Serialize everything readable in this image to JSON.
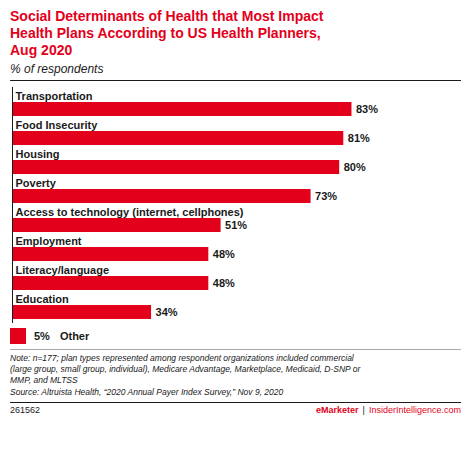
{
  "chart_data": {
    "type": "bar",
    "orientation": "horizontal",
    "title": "Social Determinants of Health that Most Impact\nHealth Plans According to US Health Planners,\nAug 2020",
    "subtitle": "% of respondents",
    "categories": [
      "Transportation",
      "Food Insecurity",
      "Housing",
      "Poverty",
      "Access to technology (internet, cellphones)",
      "Employment",
      "Literacy/language",
      "Education"
    ],
    "values": [
      83,
      81,
      80,
      73,
      51,
      48,
      48,
      34
    ],
    "value_labels": [
      "83%",
      "81%",
      "80%",
      "73%",
      "51%",
      "48%",
      "48%",
      "34%"
    ],
    "data_labels": true,
    "color": "#E3001B",
    "title_color": "#E3001B",
    "xlim": [
      0,
      100
    ],
    "tick_labels": false,
    "grid": false,
    "other_label": "Other",
    "other_value": 5,
    "other_value_label": "5%",
    "notes": [
      "Note: n=177; plan types represented among respondent organizations included commercial",
      "(large group, small group, individual), Medicare Advantage, Marketplace, Medicaid, D-SNP or",
      "MMP, and MLTSS",
      "Source: Altruista Health, “2020 Annual Payer Index Survey,” Nov 9, 2020"
    ],
    "footer_left": "261562",
    "footer_right": [
      "eMarketer",
      "|",
      "InsiderIntelligence.com"
    ]
  }
}
